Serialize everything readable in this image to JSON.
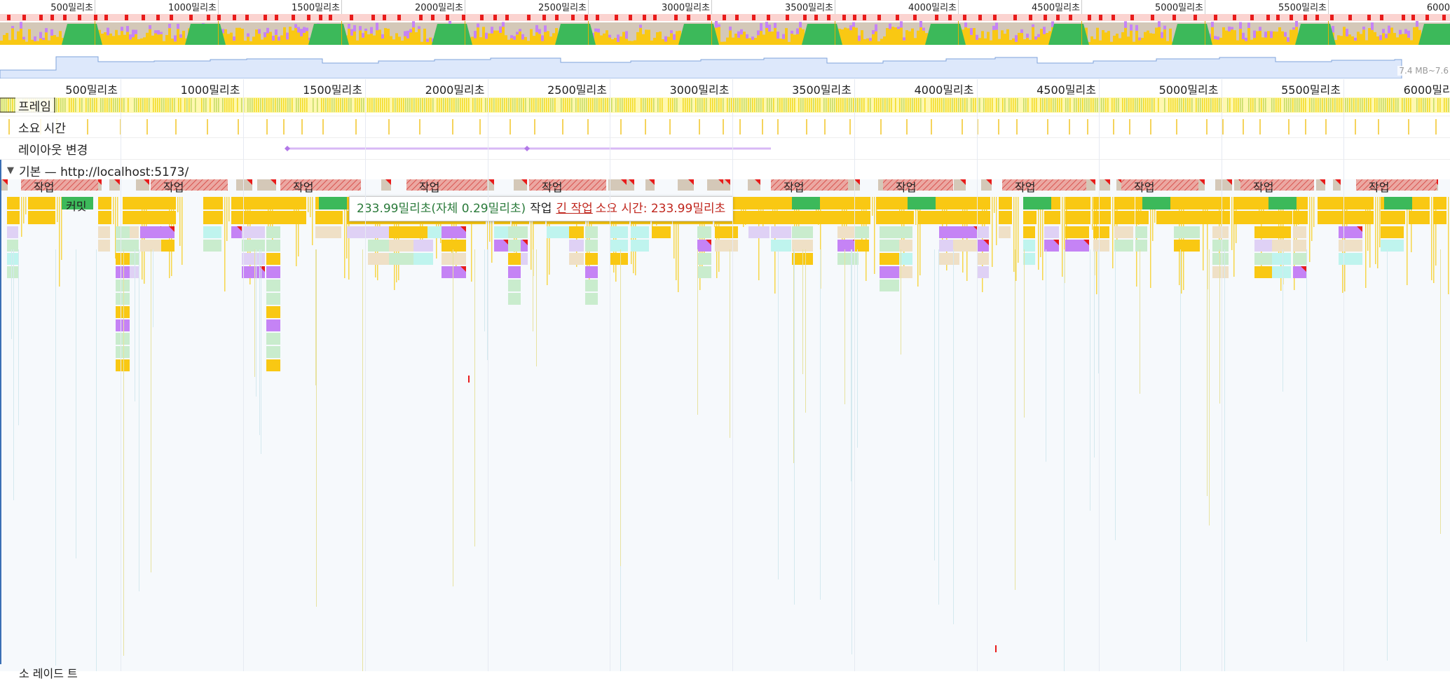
{
  "overview": {
    "tick_labels": [
      "500밀리초",
      "1000밀리초",
      "1500밀리초",
      "2000밀리초",
      "2500밀리초",
      "3000밀리초",
      "3500밀리초",
      "4000밀리초",
      "4500밀리초",
      "5000밀리초",
      "5500밀리초",
      "6000"
    ],
    "heap_range": "7.4 MB~7.6"
  },
  "main_ruler": {
    "tick_labels": [
      "500밀리초",
      "1000밀리초",
      "1500밀리초",
      "2000밀리초",
      "2500밀리초",
      "3000밀리초",
      "3500밀리초",
      "4000밀리초",
      "4500밀리초",
      "5000밀리초",
      "5500밀리초",
      "6000밀리초"
    ]
  },
  "tracks": {
    "frames": "프레임",
    "duration": "소요 시간",
    "layout_shifts": "레이아웃 변경"
  },
  "main_thread": {
    "title": "기본 — http://localhost:5173/",
    "task_label": "작업",
    "commit_label": "커밋"
  },
  "tooltip": {
    "duration": "233.99밀리초(자체 0.29밀리초)",
    "event_name": "작업",
    "warning_link": "긴 작업",
    "warning_rest": "소요 시간: 233.99밀리초"
  },
  "bottom_track": "소 레이드 트",
  "colors": {
    "scripting": "#f9c813",
    "rendering": "#c583f5",
    "painting": "#3cb95a",
    "idle": "#d4c8b8",
    "long_task": "#e64b3c",
    "accent": "#3b6fb5"
  }
}
